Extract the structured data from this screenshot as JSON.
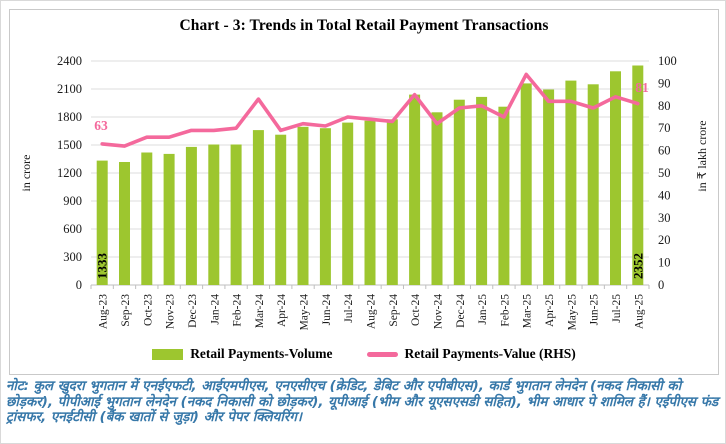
{
  "header": {
    "title": "Chart - 3: Trends in Total Retail Payment Transactions"
  },
  "legend": {
    "items": [
      {
        "label": "Retail Payments-Volume",
        "swatch": "bar"
      },
      {
        "label": "Retail Payments-Value (RHS)",
        "swatch": "line"
      }
    ]
  },
  "footnote": {
    "text": "नोट: कुल खुदरा भुगतान में एनईएफटी, आईएमपीएस, एनएसीएच (क्रेडिट, डेबिट और एपीबीएस), कार्ड भुगतान लेनदेन (नकद निकासी को छोड़कर), पीपीआई भुगतान लेनदेन (नकद निकासी को छोड़कर), यूपीआई (भीम और यूएसएसडी सहित), भीम आधार पे शामिल हैं। एईपीएस फंड ट्रांसफर, एनईटीसी (बैंक खातों से जुड़ा) और पेपर क्लियरिंग।"
  },
  "colors": {
    "bar": "#9DC62F",
    "line": "#F4699C",
    "gridline": "#DDDDDD",
    "axis_line": "#BFBFBF",
    "note_text": "#3778A9",
    "annotation": "#F4699C"
  },
  "chart_data": {
    "type": "bar",
    "subtype": "bar+line combo, dual axis",
    "title": "Chart - 3: Trends in Total Retail Payment Transactions",
    "grid": true,
    "legend_position": "bottom",
    "categories": [
      "Aug-23",
      "Sep-23",
      "Oct-23",
      "Nov-23",
      "Dec-23",
      "Jan-24",
      "Feb-24",
      "Mar-24",
      "Apr-24",
      "May-24",
      "Jun-24",
      "Jul-24",
      "Aug-24",
      "Sep-24",
      "Oct-24",
      "Nov-24",
      "Dec-24",
      "Jan-25",
      "Feb-25",
      "Mar-25",
      "Apr-25",
      "May-25",
      "Jun-25",
      "Jul-25",
      "Aug-25"
    ],
    "series": [
      {
        "name": "Retail Payments-Volume",
        "type": "bar",
        "axis": "left",
        "values": [
          1333,
          1318,
          1420,
          1405,
          1480,
          1505,
          1505,
          1660,
          1610,
          1695,
          1680,
          1740,
          1760,
          1775,
          2040,
          1850,
          1985,
          2015,
          1910,
          2160,
          2095,
          2190,
          2150,
          2290,
          2352
        ]
      },
      {
        "name": "Retail Payments-Value (RHS)",
        "type": "line",
        "axis": "right",
        "values": [
          63,
          62,
          66,
          66,
          69,
          69,
          70,
          83,
          69,
          72,
          71,
          75,
          74,
          73,
          85,
          72,
          79,
          80,
          75,
          94,
          82,
          82,
          79,
          84,
          81
        ]
      }
    ],
    "left_axis": {
      "label": "in crore",
      "min": 0,
      "max": 2400,
      "step": 300
    },
    "right_axis": {
      "label": "in ₹ lakh crore",
      "min": 0,
      "max": 100,
      "step": 10
    },
    "data_labels": {
      "first_bar": "1333",
      "last_bar": "2352",
      "first_line": "63",
      "last_line": "81"
    }
  }
}
